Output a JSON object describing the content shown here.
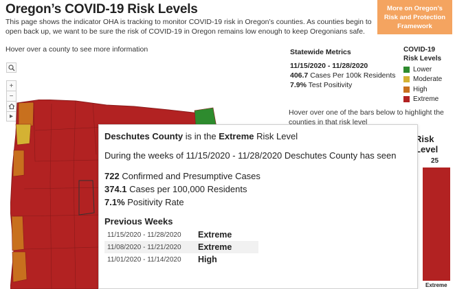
{
  "header": {
    "title": "Oregon’s COVID-19 Risk Levels",
    "intro": "This page shows the indicator OHA is tracking to monitor COVID-19 risk in Oregon’s counties. As counties begin to open back up, we want to be sure the risk of COVID-19 in Oregon remains low enough to keep Oregonians safe.",
    "hover_hint": "Hover over a county to see more information",
    "framework_button": "More on Oregon’s Risk and Protection Framework"
  },
  "statewide": {
    "heading": "Statewide Metrics",
    "dates": "11/15/2020 - 11/28/2020",
    "cases_value": "406.7",
    "cases_label": "Cases Per 100k Residents",
    "positivity_value": "7.9%",
    "positivity_label": "Test Positivity"
  },
  "legend": {
    "heading_line1": "COVID-19",
    "heading_line2": "Risk Levels",
    "items": [
      {
        "label": "Lower",
        "color": "#2e8b2e"
      },
      {
        "label": "Moderate",
        "color": "#d4b233"
      },
      {
        "label": "High",
        "color": "#c8701e"
      },
      {
        "label": "Extreme",
        "color": "#b22222"
      }
    ]
  },
  "bars_hint": "Hover over one of the bars below to highlight the counties in that risk level",
  "risk_chart": {
    "title": "Risk Level",
    "value": "25",
    "label": "Extreme"
  },
  "map_tools": {
    "search_icon": "search-icon",
    "zoom_in": "+",
    "zoom_out": "−",
    "home_icon": "home-icon",
    "expand_icon": "▸"
  },
  "tooltip": {
    "county": "Deschutes County",
    "is_in": "is in the",
    "level": "Extreme",
    "risk_level_word": "Risk Level",
    "weeks_prefix": "During the weeks of",
    "weeks_range": "11/15/2020 - 11/28/2020",
    "weeks_county": "Deschutes County has seen",
    "cases": "722",
    "cases_label": "Confirmed and Presumptive Cases",
    "rate": "374.1",
    "rate_label": "Cases per 100,000 Residents",
    "positivity": "7.1%",
    "positivity_label": "Positivity Rate",
    "previous_heading": "Previous Weeks",
    "previous": [
      {
        "dates": "11/15/2020 - 11/28/2020",
        "level": "Extreme"
      },
      {
        "dates": "11/08/2020 - 11/21/2020",
        "level": "Extreme"
      },
      {
        "dates": "11/01/2020 - 11/14/2020",
        "level": "High"
      }
    ]
  }
}
